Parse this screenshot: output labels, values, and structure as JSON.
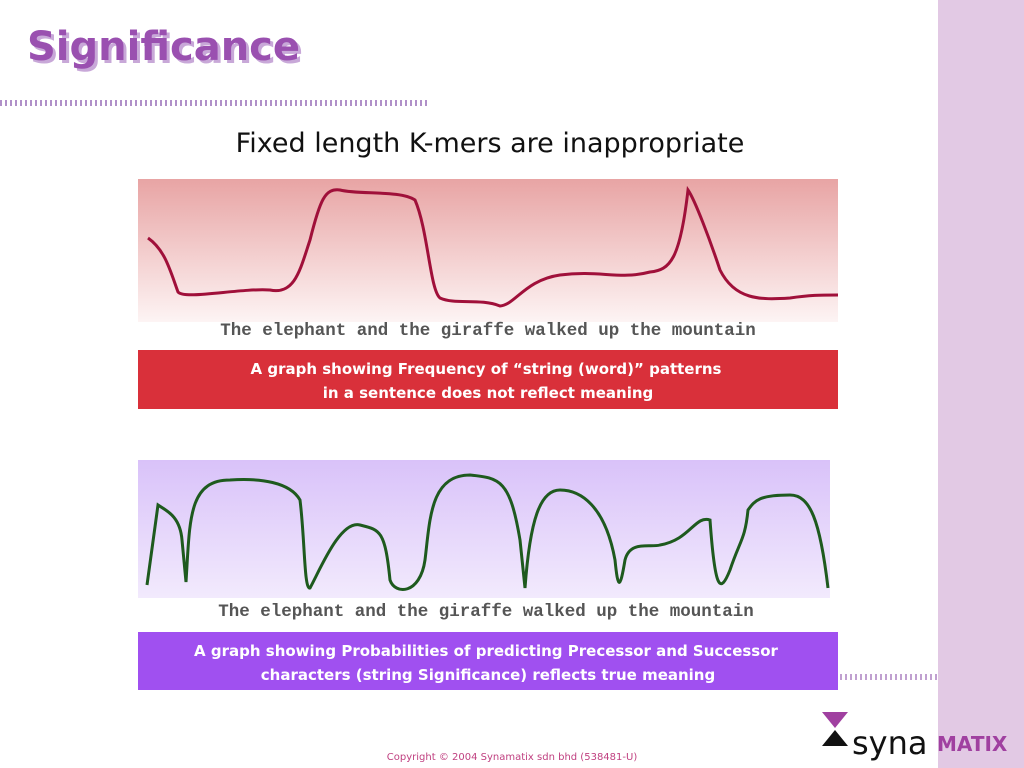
{
  "header": {
    "title": "Significance",
    "subtitle": "Fixed length K-mers are inappropriate"
  },
  "panels": [
    {
      "sentence": "The elephant and the giraffe walked up the mountain",
      "caption": [
        "A graph showing Frequency of  “string (word)” patterns",
        "in a sentence does not reflect meaning"
      ]
    },
    {
      "sentence": "The elephant and the giraffe walked up the mountain",
      "caption": [
        "A graph showing Probabilities of predicting Precessor and Successor",
        "characters (string Significance) reflects true meaning"
      ]
    }
  ],
  "logo": {
    "left": "syna",
    "right": "MATIX"
  },
  "footer": {
    "copyright": "Copyright © 2004 Synamatix sdn bhd (538481-U)"
  }
}
